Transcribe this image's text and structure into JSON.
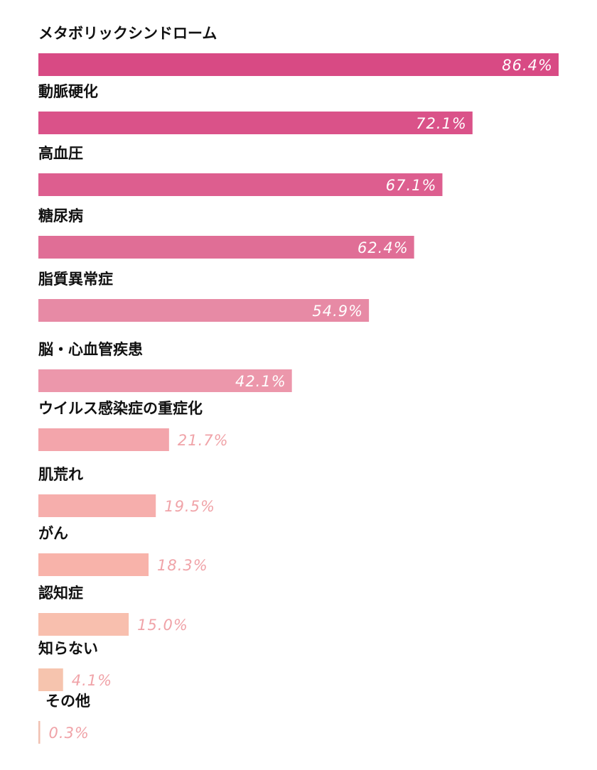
{
  "chart_data": {
    "type": "bar",
    "orientation": "horizontal",
    "categories": [
      "メタボリックシンドローム",
      "動脈硬化",
      "高血圧",
      "糖尿病",
      "脂質異常症",
      "脳・心血管疾患",
      "ウイルス感染症の重症化",
      "肌荒れ",
      "がん",
      "認知症",
      "知らない",
      "その他"
    ],
    "values": [
      86.4,
      72.1,
      67.1,
      62.4,
      54.9,
      42.1,
      21.7,
      19.5,
      18.3,
      15.0,
      4.1,
      0.3
    ],
    "value_labels": [
      "86.4%",
      "72.1%",
      "67.1%",
      "62.4%",
      "54.9%",
      "42.1%",
      "21.7%",
      "19.5%",
      "18.3%",
      "15.0%",
      "4.1%",
      "0.3%"
    ],
    "bar_colors": [
      "#d84a84",
      "#da5289",
      "#dd5e8f",
      "#e06e96",
      "#e78aa5",
      "#ec97ab",
      "#f3a5ab",
      "#f6aeac",
      "#f8b3aa",
      "#f8bfae",
      "#f6c4ae",
      "#f1c1b2"
    ],
    "label_inside_color": "#ffffff",
    "label_outside_color": "#f0a3a8",
    "xlim": [
      0,
      86.4
    ],
    "grid": false,
    "legend": "none"
  }
}
